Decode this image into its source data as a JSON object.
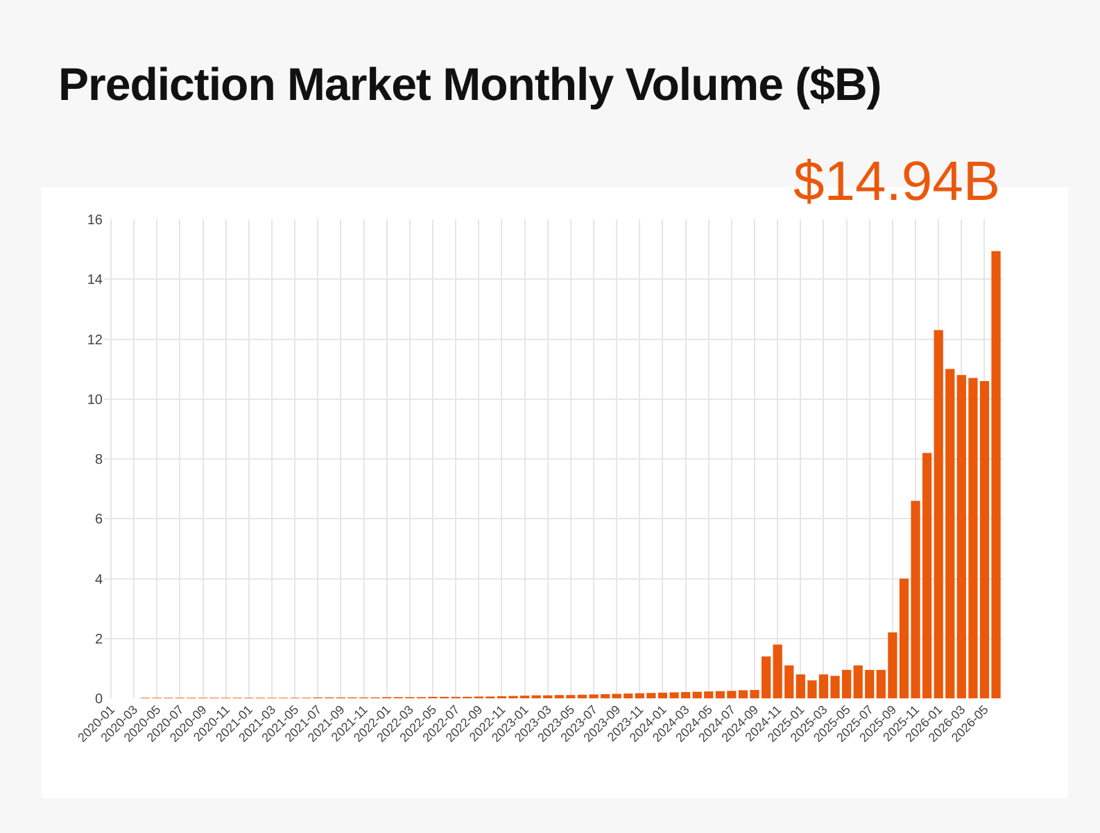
{
  "chart_data": {
    "type": "bar",
    "title": "Prediction Market Monthly Volume ($B)",
    "categories": [
      "2020-01",
      null,
      "2020-03",
      null,
      "2020-05",
      null,
      "2020-07",
      null,
      "2020-09",
      null,
      "2020-11",
      null,
      "2021-01",
      null,
      "2021-03",
      null,
      "2021-05",
      null,
      "2021-07",
      null,
      "2021-09",
      null,
      "2021-11",
      null,
      "2022-01",
      null,
      "2022-03",
      null,
      "2022-05",
      null,
      "2022-07",
      null,
      "2022-09",
      null,
      "2022-11",
      null,
      "2023-01",
      null,
      "2023-03",
      null,
      "2023-05",
      null,
      "2023-07",
      null,
      "2023-09",
      null,
      "2023-11",
      null,
      "2024-01",
      null,
      "2024-03",
      null,
      "2024-05",
      null,
      "2024-07",
      null,
      "2024-09",
      null,
      "2024-11",
      null,
      "2025-01",
      null,
      "2025-03",
      null,
      "2025-05",
      null,
      "2025-07",
      null,
      "2025-09",
      null,
      "2025-11",
      null,
      "2026-01",
      null,
      "2026-03",
      null,
      "2026-05",
      null
    ],
    "values": [
      0,
      0,
      0,
      0.02,
      0.02,
      0.02,
      0.02,
      0.02,
      0.02,
      0.02,
      0.02,
      0.02,
      0.02,
      0.02,
      0.02,
      0.02,
      0.02,
      0.02,
      0.03,
      0.03,
      0.03,
      0.03,
      0.03,
      0.03,
      0.04,
      0.04,
      0.04,
      0.04,
      0.05,
      0.05,
      0.05,
      0.05,
      0.06,
      0.06,
      0.07,
      0.08,
      0.09,
      0.1,
      0.1,
      0.11,
      0.11,
      0.12,
      0.13,
      0.14,
      0.15,
      0.16,
      0.17,
      0.18,
      0.19,
      0.2,
      0.21,
      0.22,
      0.23,
      0.24,
      0.25,
      0.27,
      0.28,
      1.4,
      1.8,
      1.1,
      0.8,
      0.6,
      0.8,
      0.75,
      0.95,
      1.1,
      0.95,
      0.95,
      2.2,
      4.0,
      6.6,
      8.2,
      12.3,
      11.0,
      10.8,
      10.7,
      10.6,
      14.94
    ],
    "color": "#ea580c",
    "ylim": [
      0,
      16
    ],
    "yticks": [
      0,
      2,
      4,
      6,
      8,
      10,
      12,
      14,
      16
    ],
    "grid": true,
    "annotations": [
      "$14.94B"
    ]
  }
}
